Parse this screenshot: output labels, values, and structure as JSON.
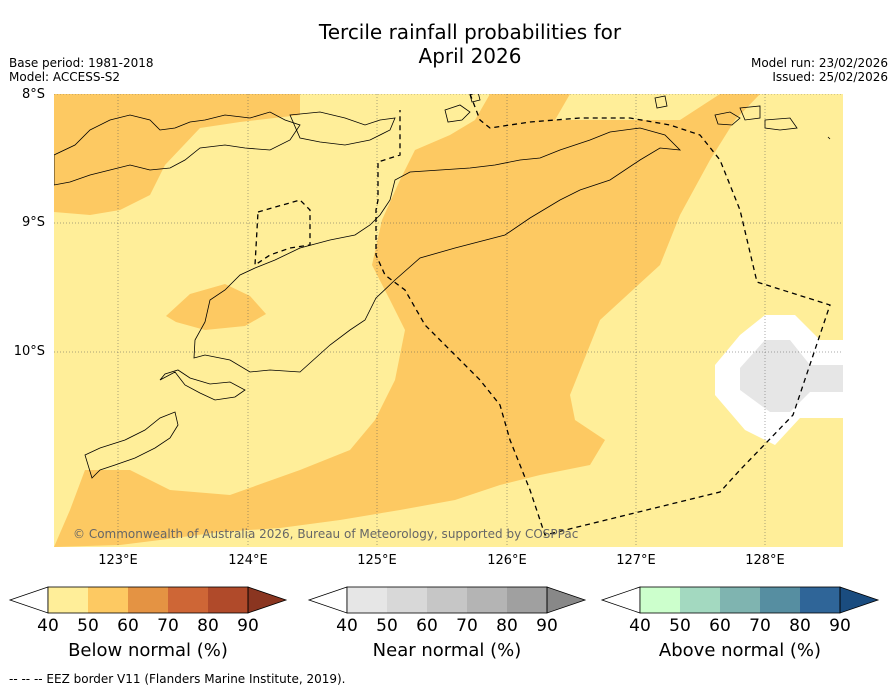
{
  "title_line1": "Tercile rainfall probabilities for",
  "title_line2": "April 2026",
  "base_period": "Base period: 1981-2018",
  "model": "Model: ACCESS-S2",
  "model_run": "Model run: 23/02/2026",
  "issued": "Issued: 25/02/2026",
  "lat_labels": [
    "8°S",
    "9°S",
    "10°S"
  ],
  "lon_labels": [
    "123°E",
    "124°E",
    "125°E",
    "126°E",
    "127°E",
    "128°E"
  ],
  "copyright": "© Commonwealth of Australia 2026, Bureau of Meteorology, supported by COSPPac",
  "colorbars": [
    {
      "title": "Below normal (%)",
      "ticks": [
        "40",
        "50",
        "60",
        "70",
        "80",
        "90"
      ],
      "colors": [
        "#ffee99",
        "#fdc962",
        "#e49343",
        "#ce6636",
        "#b04a2a",
        "#8a3520"
      ]
    },
    {
      "title": "Near normal (%)",
      "ticks": [
        "40",
        "50",
        "60",
        "70",
        "80",
        "90"
      ],
      "colors": [
        "#e6e6e6",
        "#d8d8d8",
        "#c6c6c6",
        "#b4b4b4",
        "#a0a0a0",
        "#888888"
      ]
    },
    {
      "title": "Above normal (%)",
      "ticks": [
        "40",
        "50",
        "60",
        "70",
        "80",
        "90"
      ],
      "colors": [
        "#ccffcc",
        "#a3d9c0",
        "#7fb4b0",
        "#568ea1",
        "#2f6598",
        "#1a4c7f"
      ]
    }
  ],
  "footer": "--  --  -- EEZ border V11 (Flanders Marine Institute, 2019)."
}
